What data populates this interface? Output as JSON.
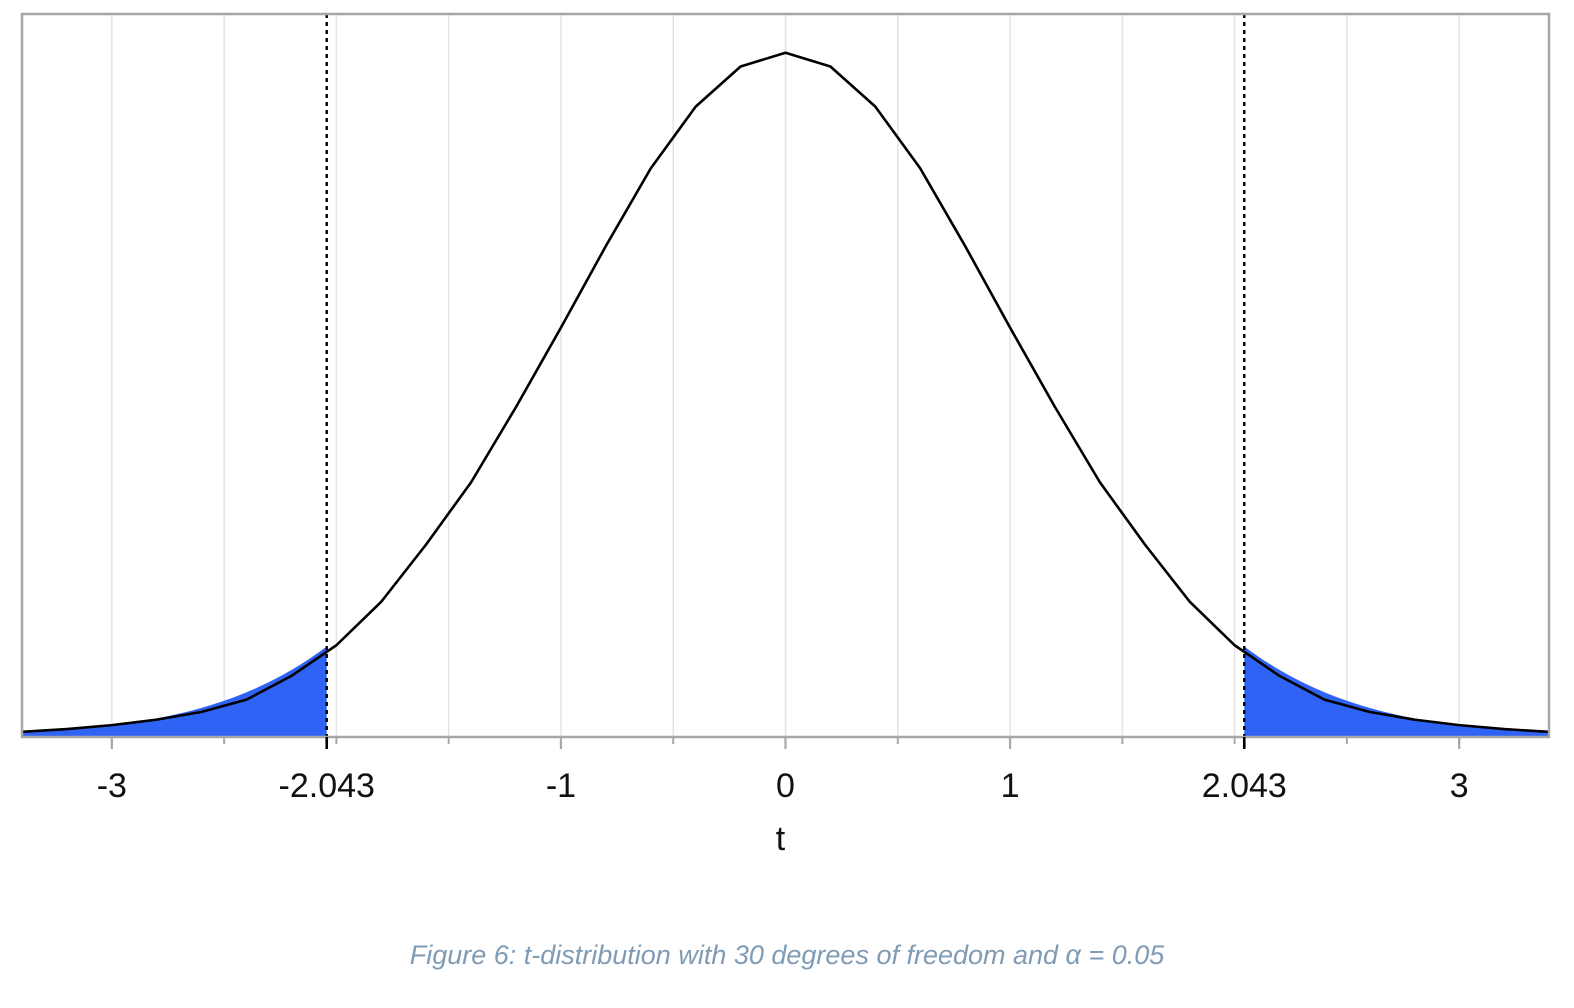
{
  "chart_data": {
    "type": "area",
    "distribution": "t",
    "degrees_of_freedom": 30,
    "alpha": 0.05,
    "critical_values": [
      -2.043,
      2.043
    ],
    "xlabel": "t",
    "ylabel": "",
    "xlim": [
      -3.4,
      3.4
    ],
    "ylim": [
      0,
      0.42
    ],
    "x_ticks": [
      -3,
      -2.043,
      -1,
      0,
      1,
      2.043,
      3
    ],
    "x_tick_labels": [
      "-3",
      "-2.043",
      "-1",
      "0",
      "1",
      "2.043",
      "3"
    ],
    "grid": true,
    "series": [
      {
        "x": [
          -3.4,
          -3.2,
          -3.0,
          -2.8,
          -2.6,
          -2.4,
          -2.2,
          -2.0,
          -1.8,
          -1.6,
          -1.4,
          -1.2,
          -1.0,
          -0.8,
          -0.6,
          -0.4,
          -0.2,
          0.0,
          0.2,
          0.4,
          0.6,
          0.8,
          1.0,
          1.2,
          1.4,
          1.6,
          1.8,
          2.0,
          2.2,
          2.4,
          2.6,
          2.8,
          3.0,
          3.2,
          3.4
        ],
        "y": [
          0.003,
          0.0046,
          0.0069,
          0.0101,
          0.0146,
          0.0217,
          0.0355,
          0.0533,
          0.0786,
          0.1119,
          0.148,
          0.1917,
          0.2378,
          0.2852,
          0.3303,
          0.3662,
          0.3895,
          0.3975,
          0.3895,
          0.3662,
          0.3303,
          0.2852,
          0.2378,
          0.1917,
          0.148,
          0.1119,
          0.0786,
          0.0533,
          0.0355,
          0.0217,
          0.0146,
          0.0101,
          0.0069,
          0.0046,
          0.003
        ]
      }
    ],
    "rejection_region_color": "#2f63f5",
    "curve_color": "#000000"
  },
  "caption": "Figure 6: t-distribution with 30 degrees of freedom and α = 0.05"
}
